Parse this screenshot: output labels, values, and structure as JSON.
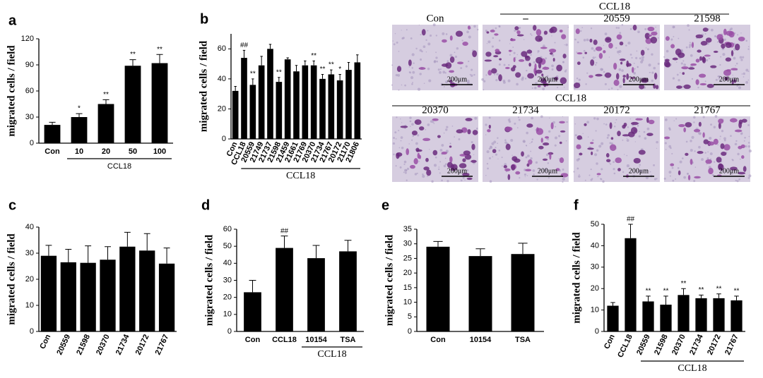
{
  "chart_data": [
    {
      "type": "bar",
      "panel": "a",
      "y_label": "migrated cells / field",
      "categories": [
        "Con",
        "10",
        "20",
        "50",
        "100"
      ],
      "values": [
        21,
        30,
        45,
        89,
        92
      ],
      "errors": [
        3,
        4,
        5,
        7,
        10
      ],
      "annotations": [
        null,
        "*",
        "**",
        "**",
        "**"
      ],
      "group": {
        "label": "CCL18",
        "categories": [
          1,
          2,
          3,
          4
        ]
      },
      "color": "#000000",
      "ylim": [
        0,
        120
      ],
      "yticks": [
        0,
        30,
        60,
        90,
        120
      ]
    },
    {
      "type": "bar",
      "panel": "b",
      "y_label": "migrated cells / field",
      "categories": [
        "Con",
        "CCL18",
        "20559",
        "21749",
        "21737",
        "21598",
        "21459",
        "21661",
        "21769",
        "20370",
        "21734",
        "21767",
        "20172",
        "21170",
        "21806"
      ],
      "values": [
        32,
        54,
        36,
        49,
        60,
        38,
        53,
        45,
        49,
        49,
        40,
        43,
        39,
        46,
        51
      ],
      "errors": [
        3,
        5,
        4,
        6,
        3,
        3,
        1,
        4,
        3,
        3,
        3,
        3,
        4,
        5,
        5
      ],
      "annotations": [
        null,
        "##",
        "**",
        null,
        null,
        "**",
        null,
        null,
        null,
        "**",
        "**",
        "**",
        "*",
        null,
        null
      ],
      "group": {
        "label": "CCL18",
        "categories": [
          1,
          2,
          3,
          4,
          5,
          6,
          7,
          8,
          9,
          10,
          11,
          12,
          13,
          14
        ]
      },
      "color": "#000000",
      "ylim": [
        0,
        70
      ],
      "yticks": [
        0,
        20,
        40,
        60
      ]
    },
    {
      "type": "bar",
      "panel": "c",
      "y_label": "migrated cells / field",
      "categories": [
        "Con",
        "20559",
        "21598",
        "20370",
        "21734",
        "20172",
        "21767"
      ],
      "values": [
        29,
        26.5,
        26.3,
        27.5,
        32.5,
        31,
        26
      ],
      "errors": [
        4,
        5,
        6.5,
        5,
        5.5,
        6.5,
        6
      ],
      "color": "#000000",
      "ylim": [
        0,
        40
      ],
      "yticks": [
        0,
        10,
        20,
        30,
        40
      ]
    },
    {
      "type": "bar",
      "panel": "d",
      "y_label": "migrated cells / field",
      "categories": [
        "Con",
        "CCL18",
        "10154",
        "TSA"
      ],
      "values": [
        23,
        49,
        43,
        47
      ],
      "errors": [
        7,
        7,
        7.5,
        6.5
      ],
      "annotations": [
        null,
        "##",
        null,
        null
      ],
      "group": {
        "label": "CCL18",
        "categories": [
          2,
          3
        ]
      },
      "color": "#000000",
      "ylim": [
        0,
        60
      ],
      "yticks": [
        0,
        10,
        20,
        30,
        40,
        50,
        60
      ]
    },
    {
      "type": "bar",
      "panel": "e",
      "y_label": "migrated cells / field",
      "categories": [
        "Con",
        "10154",
        "TSA"
      ],
      "values": [
        29,
        25.8,
        26.5
      ],
      "errors": [
        1.8,
        2.5,
        3.7
      ],
      "color": "#000000",
      "ylim": [
        0,
        35
      ],
      "yticks": [
        0,
        5,
        10,
        15,
        20,
        25,
        30,
        35
      ]
    },
    {
      "type": "bar",
      "panel": "f",
      "y_label": "migrated cells / field",
      "categories": [
        "Con",
        "CCL18",
        "20559",
        "21598",
        "20370",
        "21734",
        "20172",
        "21767"
      ],
      "values": [
        12,
        43.5,
        14,
        12.5,
        17,
        15.5,
        15.5,
        14.5
      ],
      "errors": [
        1.5,
        6.5,
        2.5,
        4,
        3,
        1.5,
        2,
        2
      ],
      "annotations": [
        null,
        "##",
        "**",
        "**",
        "**",
        "**",
        "**",
        "**"
      ],
      "group": {
        "label": "CCL18",
        "categories": [
          2,
          3,
          4,
          5,
          6,
          7
        ]
      },
      "color": "#000000",
      "ylim": [
        0,
        50
      ],
      "yticks": [
        0,
        10,
        20,
        30,
        40,
        50
      ]
    }
  ],
  "micrographs": {
    "top_group": "CCL18",
    "bottom_group": "CCL18",
    "scale": "200μm",
    "top": [
      "Con",
      "–",
      "20559",
      "21598"
    ],
    "bottom": [
      "20370",
      "21734",
      "20172",
      "21767"
    ]
  }
}
